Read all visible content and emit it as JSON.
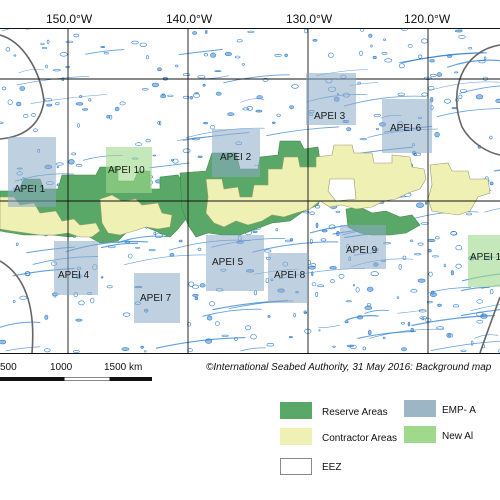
{
  "map": {
    "longitude_labels": [
      "150.0°W",
      "140.0°W",
      "130.0°W",
      "120.0°W"
    ],
    "apei_labels": [
      "APEI 1",
      "APEI 2",
      "APEI 3",
      "APEI 4",
      "APEI 5",
      "APEI 6",
      "APEI 7",
      "APEI 8",
      "APEI 9",
      "APEI 10",
      "APEI 1"
    ],
    "colors": {
      "reserve": "#5aa867",
      "contractor": "#eef0b4",
      "apei_box": "#8aa9c8",
      "new_apei": "#9fd98c",
      "bathymetry": "#2e7fd0",
      "eez": "#666666"
    }
  },
  "credit": "©International Seabed Authority, 31 May 2016: Background map",
  "scale": {
    "labels": [
      "500",
      "1000",
      "1500 km"
    ]
  },
  "legend": {
    "reserve": "Reserve Areas",
    "contractor": "Contractor Areas",
    "eez": "EEZ",
    "emp": "EMP- A",
    "new_apei": "New Al"
  }
}
